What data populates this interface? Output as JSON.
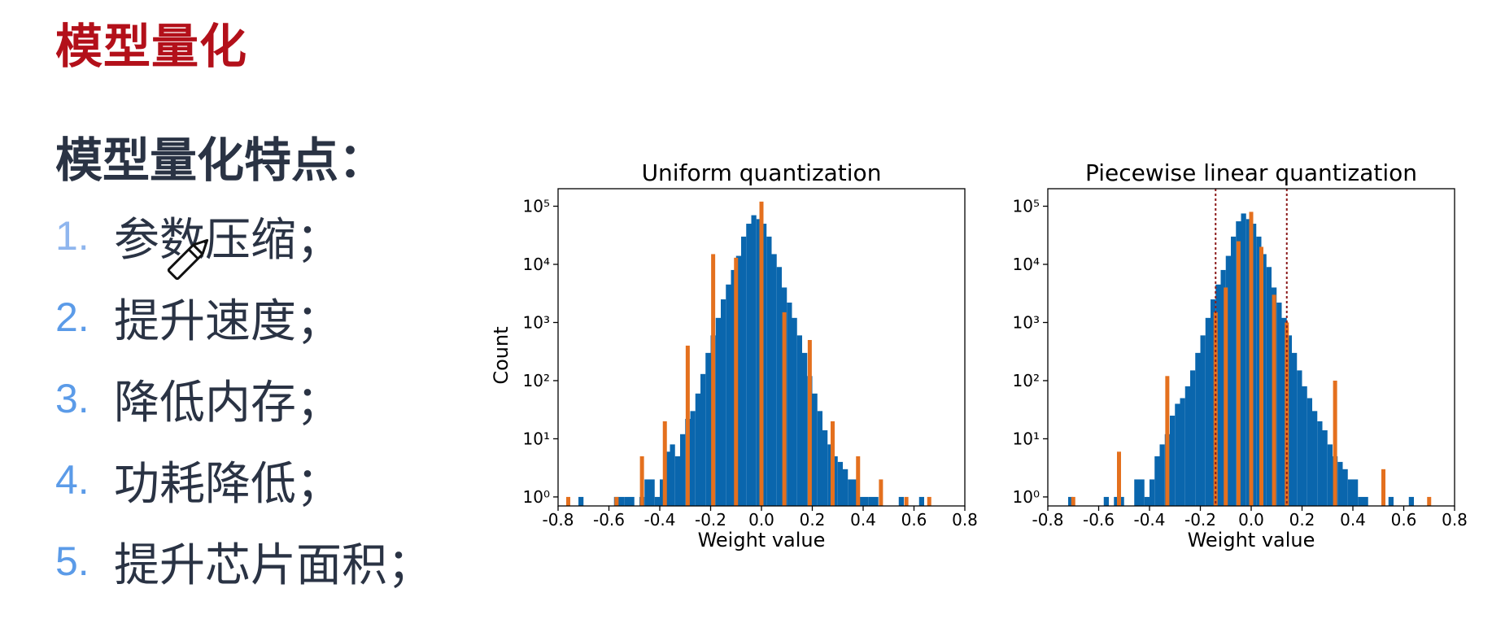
{
  "slide": {
    "title": "模型量化",
    "subtitle": "模型量化特点：",
    "features": [
      {
        "num": "1.",
        "text": "参数压缩；"
      },
      {
        "num": "2.",
        "text": "提升速度；"
      },
      {
        "num": "3.",
        "text": "降低内存；"
      },
      {
        "num": "4.",
        "text": "功耗降低；"
      },
      {
        "num": "5.",
        "text": "提升芯片面积；"
      }
    ]
  },
  "colors": {
    "title": "#b3101a",
    "text": "#2a3344",
    "number": "#5b9be8",
    "hist_blue": "#0a66ad",
    "quant_orange": "#e4701e",
    "threshold_line": "#8b1a1a"
  },
  "icons": {
    "cursor": "pencil-icon"
  },
  "chart_data": [
    {
      "type": "bar",
      "title": "Uniform quantization",
      "xlabel": "Weight value",
      "ylabel": "Count",
      "xlim": [
        -0.8,
        0.8
      ],
      "ylim": [
        0.7,
        200000
      ],
      "yscale": "log",
      "xticks": [
        "-0.8",
        "-0.6",
        "-0.4",
        "-0.2",
        "0.0",
        "0.2",
        "0.4",
        "0.6",
        "0.8"
      ],
      "yticks": [
        1,
        10,
        100,
        1000,
        10000,
        100000
      ],
      "grid": false,
      "series": [
        {
          "kind": "histogram",
          "color": "#0a66ad",
          "bin_width": 0.02,
          "bin_centers": [
            -0.71,
            -0.57,
            -0.55,
            -0.53,
            -0.51,
            -0.47,
            -0.45,
            -0.43,
            -0.41,
            -0.39,
            -0.37,
            -0.35,
            -0.33,
            -0.31,
            -0.29,
            -0.27,
            -0.25,
            -0.23,
            -0.21,
            -0.19,
            -0.17,
            -0.15,
            -0.13,
            -0.11,
            -0.09,
            -0.07,
            -0.05,
            -0.03,
            -0.01,
            0.01,
            0.03,
            0.05,
            0.07,
            0.09,
            0.11,
            0.13,
            0.15,
            0.17,
            0.19,
            0.21,
            0.23,
            0.25,
            0.27,
            0.29,
            0.31,
            0.33,
            0.35,
            0.37,
            0.39,
            0.41,
            0.43,
            0.45,
            0.55,
            0.63
          ],
          "counts": [
            1,
            1,
            1,
            1,
            1,
            1,
            2,
            2,
            1,
            2,
            6,
            8,
            5,
            12,
            22,
            30,
            60,
            130,
            300,
            600,
            1200,
            2500,
            4500,
            8000,
            14000,
            30000,
            50000,
            70000,
            60000,
            50000,
            30000,
            15000,
            9000,
            4000,
            2200,
            1200,
            600,
            300,
            120,
            60,
            30,
            14,
            8,
            5,
            4,
            3,
            2,
            2,
            1,
            1,
            1,
            1,
            1,
            1
          ]
        },
        {
          "kind": "quantized_levels",
          "color": "#e4701e",
          "x": [
            -0.76,
            -0.57,
            -0.47,
            -0.38,
            -0.29,
            -0.19,
            -0.1,
            0.0,
            0.09,
            0.19,
            0.28,
            0.38,
            0.47,
            0.57,
            0.66
          ],
          "counts": [
            1,
            1,
            5,
            20,
            400,
            15000,
            13000,
            120000,
            1500,
            500,
            20,
            5,
            2,
            1,
            1
          ]
        }
      ]
    },
    {
      "type": "bar",
      "title": "Piecewise linear quantization",
      "xlabel": "Weight value",
      "ylabel": "",
      "xlim": [
        -0.8,
        0.8
      ],
      "ylim": [
        0.7,
        200000
      ],
      "yscale": "log",
      "xticks": [
        "-0.8",
        "-0.6",
        "-0.4",
        "-0.2",
        "0.0",
        "0.2",
        "0.4",
        "0.6",
        "0.8"
      ],
      "yticks": [
        1,
        10,
        100,
        1000,
        10000,
        100000
      ],
      "grid": false,
      "breakpoints": [
        -0.14,
        0.14
      ],
      "series": [
        {
          "kind": "histogram",
          "color": "#0a66ad",
          "bin_width": 0.02,
          "bin_centers": [
            -0.71,
            -0.57,
            -0.53,
            -0.51,
            -0.45,
            -0.43,
            -0.41,
            -0.39,
            -0.37,
            -0.35,
            -0.33,
            -0.31,
            -0.29,
            -0.27,
            -0.25,
            -0.23,
            -0.21,
            -0.19,
            -0.17,
            -0.15,
            -0.13,
            -0.11,
            -0.09,
            -0.07,
            -0.05,
            -0.03,
            -0.01,
            0.01,
            0.03,
            0.05,
            0.07,
            0.09,
            0.11,
            0.13,
            0.15,
            0.17,
            0.19,
            0.21,
            0.23,
            0.25,
            0.27,
            0.29,
            0.31,
            0.33,
            0.35,
            0.37,
            0.39,
            0.41,
            0.43,
            0.45,
            0.55,
            0.63
          ],
          "counts": [
            1,
            1,
            1,
            1,
            2,
            2,
            1,
            2,
            5,
            8,
            12,
            25,
            40,
            50,
            80,
            150,
            300,
            600,
            1200,
            2500,
            4500,
            8000,
            14000,
            30000,
            55000,
            75000,
            60000,
            50000,
            30000,
            15000,
            9000,
            4000,
            2200,
            1200,
            600,
            300,
            150,
            80,
            50,
            30,
            20,
            14,
            8,
            5,
            4,
            3,
            2,
            2,
            1,
            1,
            1,
            1
          ]
        },
        {
          "kind": "quantized_levels",
          "color": "#e4701e",
          "x": [
            -0.7,
            -0.52,
            -0.33,
            -0.14,
            -0.1,
            -0.05,
            0.0,
            0.04,
            0.09,
            0.14,
            0.33,
            0.52,
            0.7
          ],
          "counts": [
            1,
            6,
            120,
            1500,
            4000,
            25000,
            80000,
            20000,
            3000,
            1000,
            100,
            3,
            1
          ]
        }
      ]
    }
  ]
}
